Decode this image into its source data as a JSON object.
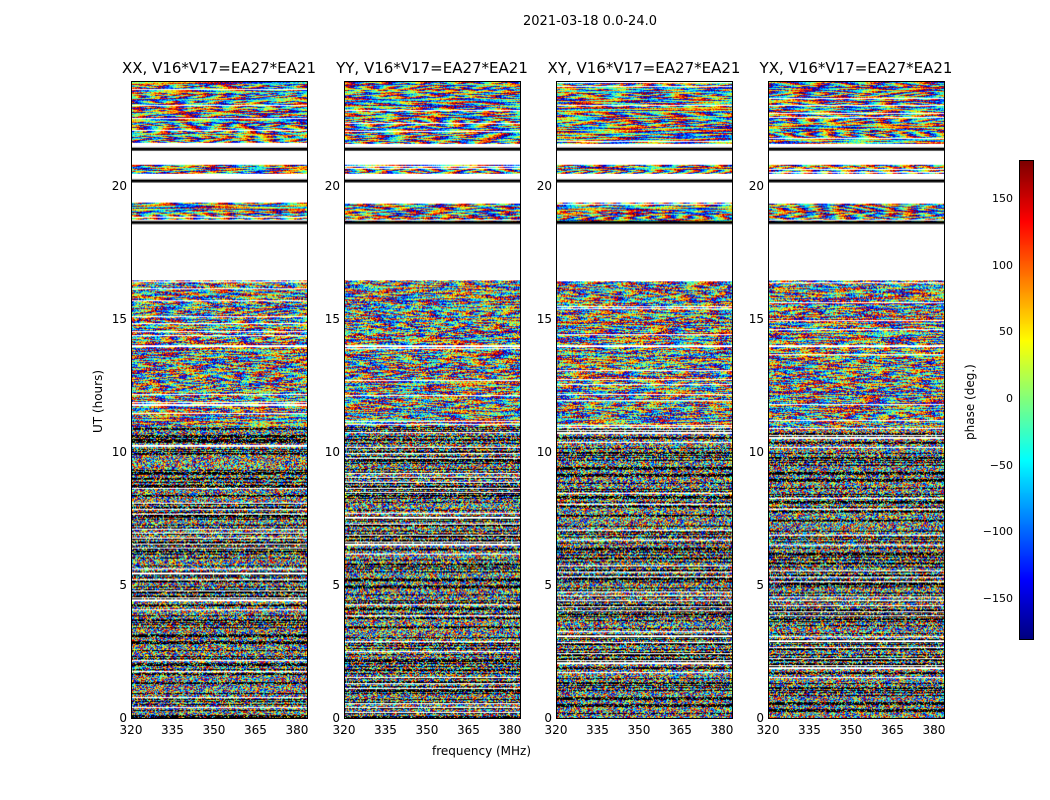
{
  "suptitle": "2021-03-18 0.0-24.0",
  "chart_data": {
    "type": "heatmap",
    "title": "2021-03-18 0.0-24.0",
    "xlabel": "frequency (MHz)",
    "ylabel": "UT (hours)",
    "xlim": [
      320,
      384
    ],
    "ylim": [
      0,
      24
    ],
    "xticks": [
      "320",
      "335",
      "350",
      "365",
      "380"
    ],
    "xtick_values": [
      320,
      335,
      350,
      365,
      380
    ],
    "yticks": [
      "0",
      "5",
      "10",
      "15",
      "20"
    ],
    "ytick_values": [
      0,
      5,
      10,
      15,
      20
    ],
    "panels": [
      {
        "title": "XX, V16*V17=EA27*EA21"
      },
      {
        "title": "YY, V16*V17=EA27*EA21"
      },
      {
        "title": "XY, V16*V17=EA27*EA21"
      },
      {
        "title": "YX, V16*V17=EA27*EA21"
      }
    ],
    "data_time_ranges_hours": [
      [
        0,
        14.0
      ],
      [
        14.1,
        16.55
      ],
      [
        18.7,
        19.45
      ],
      [
        20.55,
        20.9
      ],
      [
        21.7,
        24
      ]
    ],
    "colorbar": {
      "label": "phase (deg.)",
      "colormap": "jet",
      "range": [
        -180,
        180
      ],
      "ticks": [
        "150",
        "100",
        "50",
        "0",
        "−50",
        "−100",
        "−150"
      ],
      "tick_values": [
        150,
        100,
        50,
        0,
        -50,
        -100,
        -150
      ]
    }
  }
}
